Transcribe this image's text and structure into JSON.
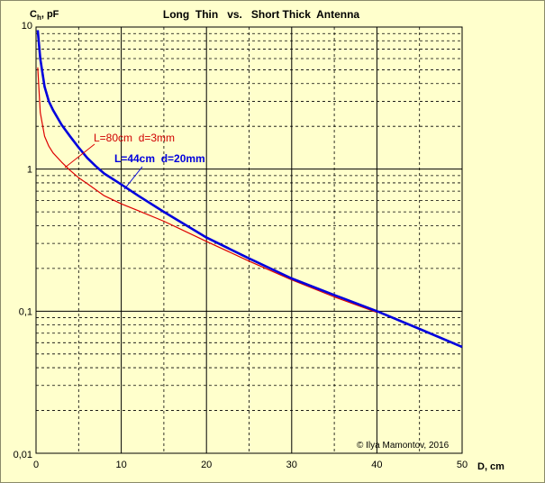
{
  "chart_data": {
    "type": "line",
    "title": "Long  Thin   vs.   Short Thick  Antenna",
    "ylabel_main": "C",
    "ylabel_sub": "h",
    "ylabel_unit": ", pF",
    "xlabel": "D, cm",
    "xlim": [
      0,
      50
    ],
    "ylim": [
      0.01,
      10
    ],
    "yscale": "log",
    "x_ticks": [
      {
        "value": 0,
        "label": "0"
      },
      {
        "value": 10,
        "label": "10"
      },
      {
        "value": 20,
        "label": "20"
      },
      {
        "value": 30,
        "label": "30"
      },
      {
        "value": 40,
        "label": "40"
      },
      {
        "value": 50,
        "label": "50"
      }
    ],
    "y_ticks": [
      {
        "value": 10,
        "label": "10"
      },
      {
        "value": 1,
        "label": "1"
      },
      {
        "value": 0.1,
        "label": "0,1"
      },
      {
        "value": 0.01,
        "label": "0,01"
      }
    ],
    "grid": true,
    "copyright": "© Ilya Mamontov, 2016",
    "series": [
      {
        "name": "L=80cm  d=3mm",
        "color": "#dd0000",
        "x": [
          0.2,
          0.5,
          1,
          1.5,
          2,
          3,
          4,
          5,
          6,
          8,
          10,
          12,
          15,
          20,
          25,
          30,
          35,
          40
        ],
        "y": [
          5.2,
          2.5,
          1.7,
          1.45,
          1.3,
          1.12,
          0.98,
          0.87,
          0.79,
          0.65,
          0.57,
          0.51,
          0.43,
          0.31,
          0.225,
          0.166,
          0.126,
          0.098
        ]
      },
      {
        "name": "L=44cm  d=20mm",
        "color": "#0000dd",
        "x": [
          0.2,
          0.5,
          1,
          1.5,
          2,
          3,
          4,
          5,
          6,
          7,
          8,
          10,
          12,
          15,
          20,
          25,
          30,
          35,
          40,
          45,
          50
        ],
        "y": [
          9.5,
          6.0,
          3.8,
          3.0,
          2.6,
          2.05,
          1.7,
          1.42,
          1.2,
          1.05,
          0.93,
          0.78,
          0.65,
          0.5,
          0.33,
          0.235,
          0.17,
          0.13,
          0.1,
          0.075,
          0.056
        ]
      }
    ]
  }
}
